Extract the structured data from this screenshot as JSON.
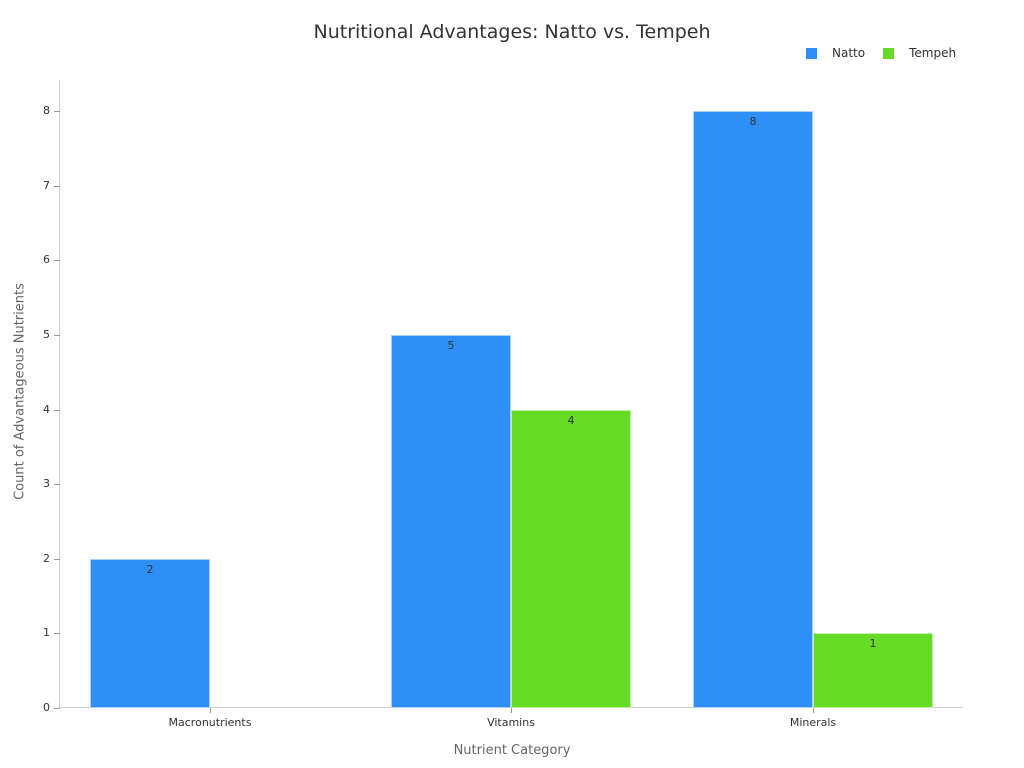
{
  "chart_data": {
    "type": "bar",
    "title": "Nutritional Advantages: Natto vs. Tempeh",
    "xlabel": "Nutrient Category",
    "ylabel": "Count of Advantageous Nutrients",
    "categories": [
      "Macronutrients",
      "Vitamins",
      "Minerals"
    ],
    "series": [
      {
        "name": "Natto",
        "color": "#2e90f6",
        "values": [
          2,
          5,
          8
        ]
      },
      {
        "name": "Tempeh",
        "color": "#66db26",
        "values": [
          0,
          4,
          1
        ]
      }
    ],
    "ylim": [
      0,
      8.4
    ],
    "yticks": [
      0,
      1,
      2,
      3,
      4,
      5,
      6,
      7,
      8
    ],
    "grid": false,
    "legend_position": "top-right"
  }
}
